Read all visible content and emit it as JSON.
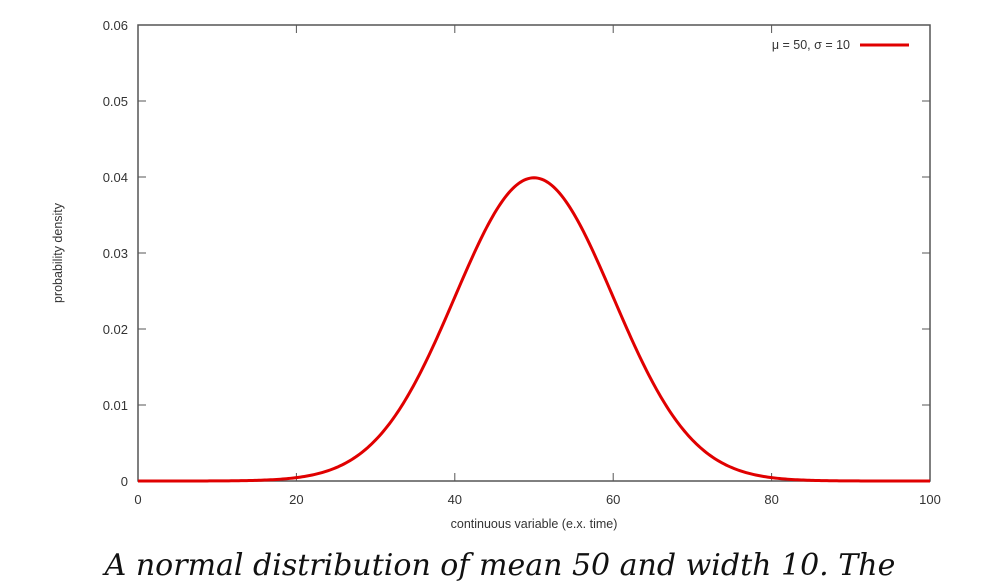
{
  "chart_data": {
    "type": "line",
    "title": "",
    "xlabel": "continuous variable (e.x. time)",
    "ylabel": "probability density",
    "xlim": [
      0,
      100
    ],
    "ylim": [
      0,
      0.06
    ],
    "xticks": [
      "0",
      "20",
      "40",
      "60",
      "80",
      "100"
    ],
    "yticks": [
      "0",
      "0.01",
      "0.02",
      "0.03",
      "0.04",
      "0.05",
      "0.06"
    ],
    "grid": false,
    "legend_position": "top-right",
    "series": [
      {
        "name": "μ = 50, σ = 10",
        "color": "#e00000",
        "mean": 50,
        "sd": 10,
        "x": [
          0,
          10,
          20,
          25,
          30,
          35,
          40,
          45,
          50,
          55,
          60,
          65,
          70,
          75,
          80,
          90,
          100
        ],
        "values": [
          1.5e-06,
          1.34e-05,
          0.00044,
          0.00175,
          0.0054,
          0.013,
          0.0242,
          0.0352,
          0.0399,
          0.0352,
          0.0242,
          0.013,
          0.0054,
          0.00175,
          0.00044,
          1.34e-05,
          1.5e-06
        ]
      }
    ]
  },
  "caption": "A normal distribution of mean 50 and width 10. The"
}
